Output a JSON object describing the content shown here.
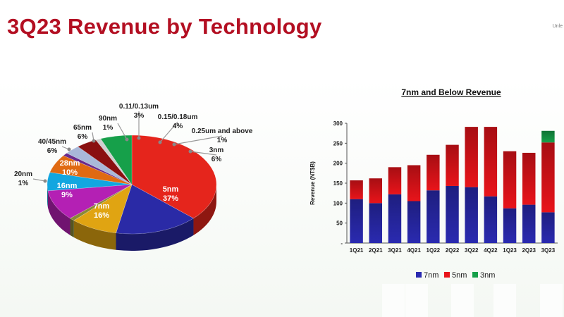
{
  "title": "3Q23 Revenue by Technology",
  "corner_text": "Unle",
  "chart_data": [
    {
      "type": "pie",
      "slices": [
        {
          "label": "5nm",
          "percent": "37%",
          "value": 37,
          "color": "#e5251c"
        },
        {
          "label": "7nm",
          "percent": "16%",
          "value": 16,
          "color": "#2a2aa6"
        },
        {
          "label": "16nm",
          "percent": "9%",
          "value": 9,
          "color": "#e0a412"
        },
        {
          "label": "20nm",
          "percent": "1%",
          "value": 1,
          "color": "#8a8a35"
        },
        {
          "label": "28nm",
          "percent": "10%",
          "value": 10,
          "color": "#b420b4"
        },
        {
          "label": "40/45nm",
          "percent": "6%",
          "value": 6,
          "color": "#12a6e0"
        },
        {
          "label": "65nm",
          "percent": "6%",
          "value": 6,
          "color": "#e06a12"
        },
        {
          "label": "90nm",
          "percent": "1%",
          "value": 1,
          "color": "#6a2a8a"
        },
        {
          "label": "0.11/0.13um",
          "percent": "3%",
          "value": 3,
          "color": "#a9b8d8"
        },
        {
          "label": "0.15/0.18um",
          "percent": "4%",
          "value": 4,
          "color": "#8a1010"
        },
        {
          "label": "0.25um and above",
          "percent": "1%",
          "value": 1,
          "color": "#cfcfcf"
        },
        {
          "label": "3nm",
          "percent": "6%",
          "value": 6,
          "color": "#16a04a"
        }
      ]
    },
    {
      "type": "bar",
      "stacked": true,
      "title": "7nm and Below Revenue",
      "ylabel": "Revenue (NT$B)",
      "ylim": [
        0,
        300
      ],
      "yticks": [
        "-",
        "50",
        "100",
        "150",
        "200",
        "250",
        "300"
      ],
      "categories": [
        "1Q21",
        "2Q21",
        "3Q21",
        "4Q21",
        "1Q22",
        "2Q22",
        "3Q22",
        "4Q22",
        "1Q23",
        "2Q23",
        "3Q23"
      ],
      "series": [
        {
          "name": "7nm",
          "color": "#2a2ab0",
          "values": [
            110,
            100,
            122,
            105,
            132,
            143,
            140,
            117,
            87,
            96,
            77
          ]
        },
        {
          "name": "5nm",
          "color": "#e8141a",
          "values": [
            47,
            62,
            68,
            90,
            89,
            103,
            151,
            174,
            143,
            130,
            175
          ]
        },
        {
          "name": "3nm",
          "color": "#16a04a",
          "values": [
            0,
            0,
            0,
            0,
            0,
            0,
            0,
            0,
            0,
            0,
            29
          ]
        }
      ],
      "legend_position": "bottom"
    }
  ]
}
